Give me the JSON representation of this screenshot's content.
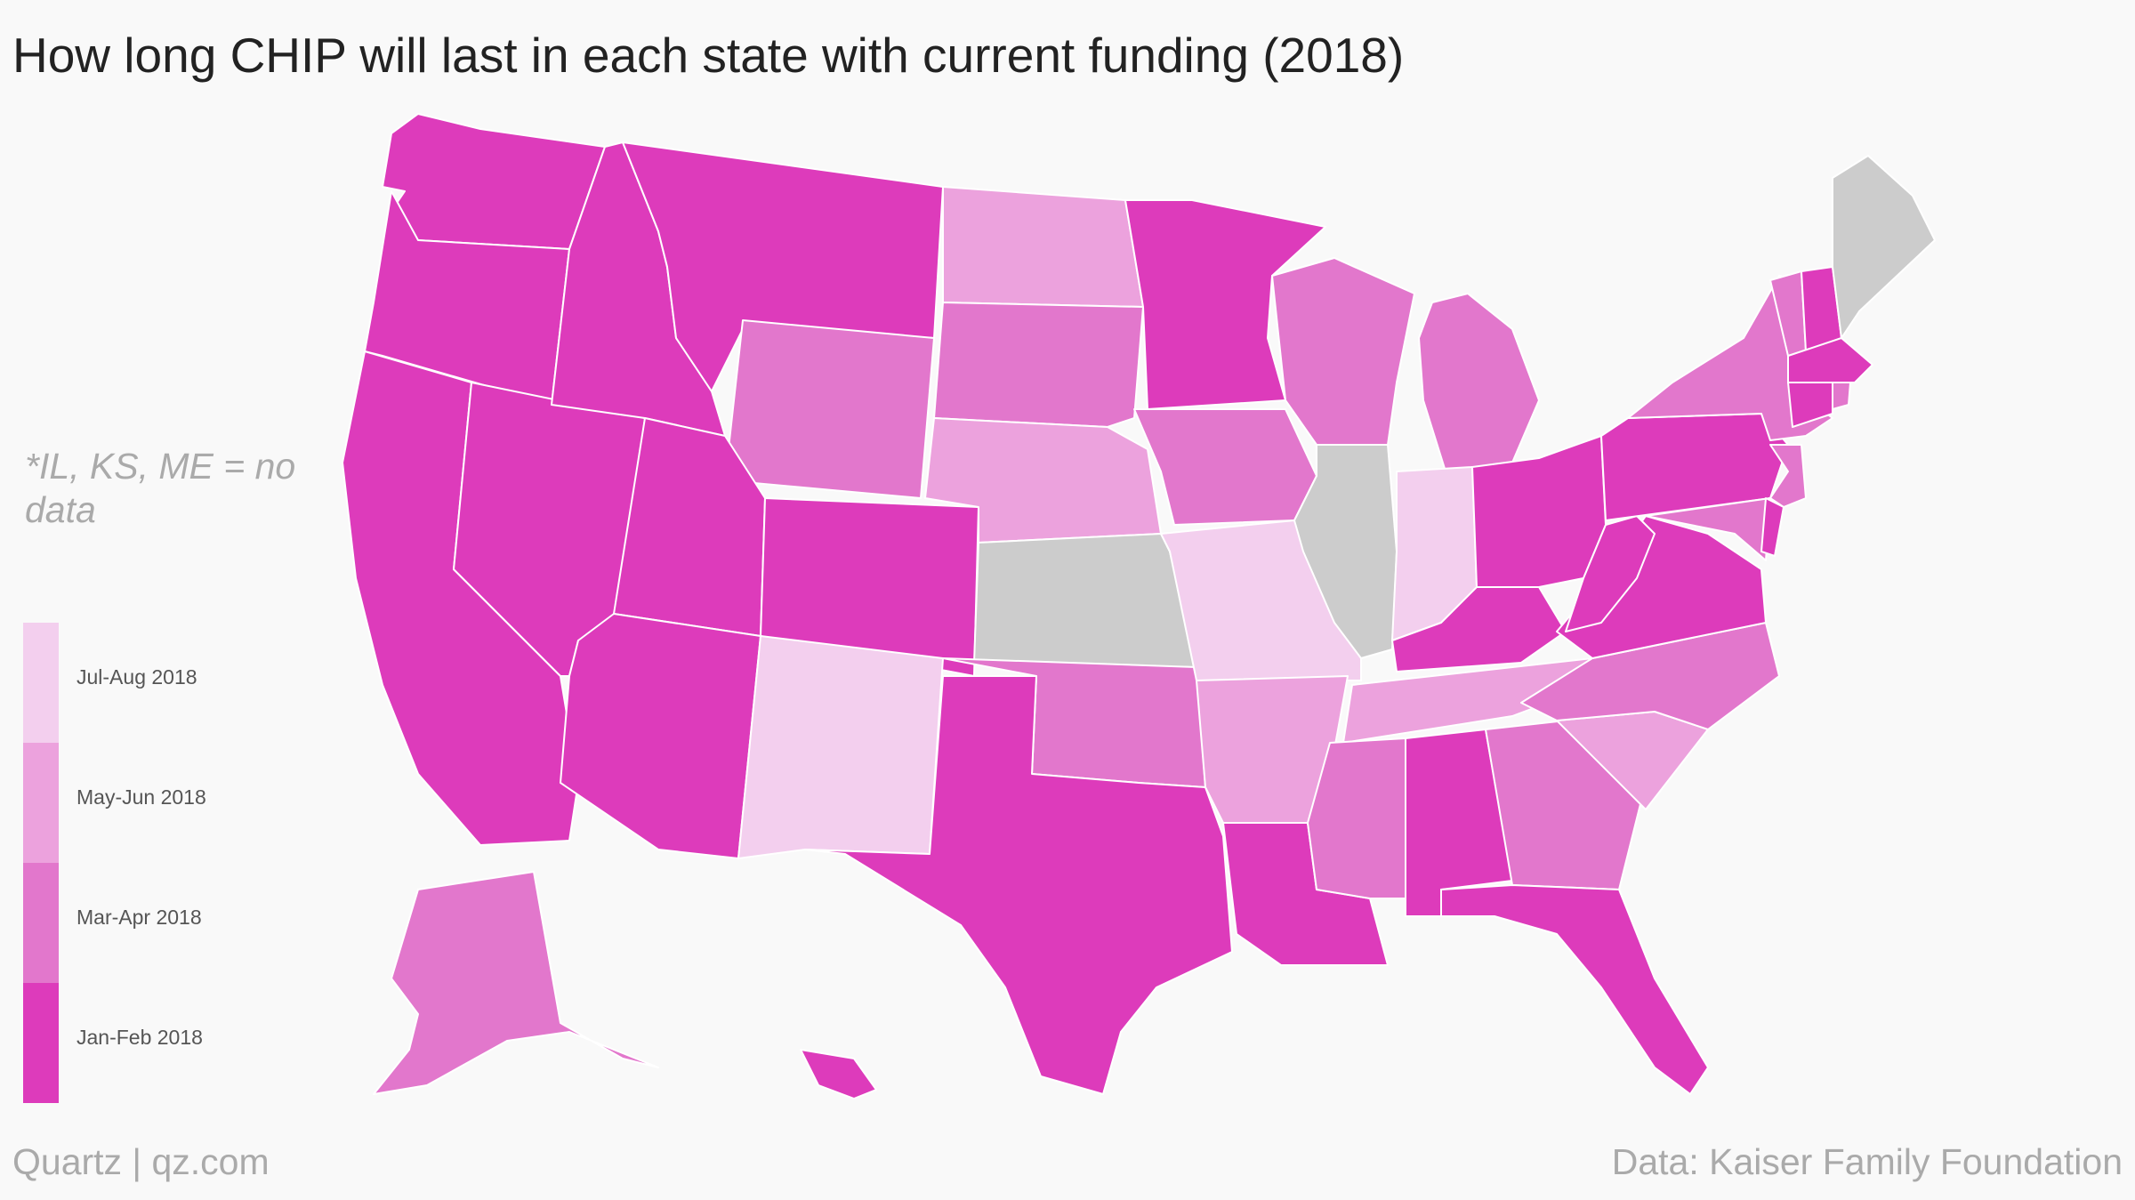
{
  "title": "How long CHIP will last in each state with current funding (2018)",
  "note": "*IL, KS, ME = no data",
  "legend": [
    {
      "label": "Jul-Aug 2018",
      "color": "#f3cfee"
    },
    {
      "label": "May-Jun 2018",
      "color": "#eca2dd"
    },
    {
      "label": "Mar-Apr 2018",
      "color": "#e277cc"
    },
    {
      "label": "Jan-Feb 2018",
      "color": "#dd3bbb"
    }
  ],
  "no_data_color": "#cccccc",
  "footer": {
    "left": "Quartz | qz.com",
    "right": "Data: Kaiser Family Foundation"
  },
  "states": {
    "WA": "Jan-Feb 2018",
    "OR": "Jan-Feb 2018",
    "CA": "Jan-Feb 2018",
    "NV": "Jan-Feb 2018",
    "ID": "Jan-Feb 2018",
    "MT": "Jan-Feb 2018",
    "UT": "Jan-Feb 2018",
    "AZ": "Jan-Feb 2018",
    "CO": "Jan-Feb 2018",
    "TX": "Jan-Feb 2018",
    "LA": "Jan-Feb 2018",
    "MN": "Jan-Feb 2018",
    "AL": "Jan-Feb 2018",
    "FL": "Jan-Feb 2018",
    "KY": "Jan-Feb 2018",
    "OH": "Jan-Feb 2018",
    "WV": "Jan-Feb 2018",
    "VA": "Jan-Feb 2018",
    "PA": "Jan-Feb 2018",
    "NH": "Jan-Feb 2018",
    "MA": "Jan-Feb 2018",
    "CT": "Jan-Feb 2018",
    "DE": "Jan-Feb 2018",
    "HI": "Jan-Feb 2018",
    "WY": "Mar-Apr 2018",
    "SD": "Mar-Apr 2018",
    "IA": "Mar-Apr 2018",
    "OK": "Mar-Apr 2018",
    "WI": "Mar-Apr 2018",
    "MI": "Mar-Apr 2018",
    "MS": "Mar-Apr 2018",
    "GA": "Mar-Apr 2018",
    "NC": "Mar-Apr 2018",
    "NY": "Mar-Apr 2018",
    "VT": "Mar-Apr 2018",
    "NJ": "Mar-Apr 2018",
    "MD": "Mar-Apr 2018",
    "RI": "Mar-Apr 2018",
    "AK": "Mar-Apr 2018",
    "ND": "May-Jun 2018",
    "NE": "May-Jun 2018",
    "AR": "May-Jun 2018",
    "TN": "May-Jun 2018",
    "SC": "May-Jun 2018",
    "NM": "Jul-Aug 2018",
    "MO": "Jul-Aug 2018",
    "IN": "Jul-Aug 2018",
    "IL": "no data",
    "KS": "no data",
    "ME": "no data"
  }
}
